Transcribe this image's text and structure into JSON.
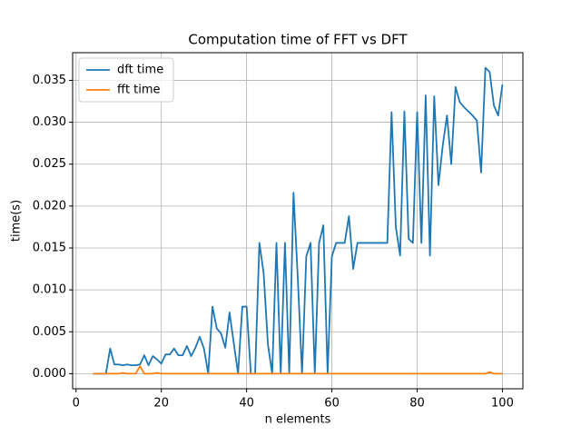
{
  "chart_data": {
    "type": "line",
    "title": "Computation time of FFT vs DFT",
    "x_label": "n elements",
    "y_label": "time(s)",
    "x": [
      4,
      5,
      6,
      7,
      8,
      9,
      10,
      11,
      12,
      13,
      14,
      15,
      16,
      17,
      18,
      19,
      20,
      21,
      22,
      23,
      24,
      25,
      26,
      27,
      28,
      29,
      30,
      31,
      32,
      33,
      34,
      35,
      36,
      37,
      38,
      39,
      40,
      41,
      42,
      43,
      44,
      45,
      46,
      47,
      48,
      49,
      50,
      51,
      52,
      53,
      54,
      55,
      56,
      57,
      58,
      59,
      60,
      61,
      62,
      63,
      64,
      65,
      66,
      67,
      68,
      69,
      70,
      71,
      72,
      73,
      74,
      75,
      76,
      77,
      78,
      79,
      80,
      81,
      82,
      83,
      84,
      85,
      86,
      87,
      88,
      89,
      90,
      91,
      92,
      93,
      94,
      95,
      96,
      97,
      98,
      99,
      100
    ],
    "series": [
      {
        "name": "dft time",
        "color": "#1f77b4",
        "values": [
          0,
          0,
          0,
          0,
          0.003,
          0.0011,
          0.0011,
          0.001,
          0.0011,
          0.001,
          0.001,
          0.0011,
          0.0022,
          0.001,
          0.0021,
          0.0017,
          0.0012,
          0.0023,
          0.0023,
          0.003,
          0.0022,
          0.0022,
          0.0033,
          0.0021,
          0.0031,
          0.0044,
          0.003,
          0,
          0.008,
          0.0054,
          0.0048,
          0.0031,
          0.0073,
          0.0036,
          0,
          0.008,
          0.008,
          0,
          0,
          0.0156,
          0.012,
          0.0035,
          0,
          0.0156,
          0,
          0.0156,
          0,
          0.0216,
          0.0115,
          0,
          0.014,
          0.0156,
          0,
          0.0156,
          0.0177,
          0,
          0.014,
          0.0156,
          0.0156,
          0.0156,
          0.0188,
          0.0125,
          0.0156,
          0.0156,
          0.0156,
          0.0156,
          0.0156,
          0.0156,
          0.0156,
          0.0156,
          0.0312,
          0.0175,
          0.0141,
          0.0313,
          0.0161,
          0.0156,
          0.0312,
          0.0156,
          0.0332,
          0.0141,
          0.0331,
          0.0225,
          0.0272,
          0.0308,
          0.025,
          0.0342,
          0.0324,
          0.0318,
          0.0313,
          0.0308,
          0.0302,
          0.024,
          0.0365,
          0.036,
          0.032,
          0.0308,
          0.0345
        ]
      },
      {
        "name": "fft time",
        "color": "#ff7f0e",
        "values": [
          0,
          0,
          0,
          0,
          0,
          0,
          0,
          0.0001,
          0,
          0,
          0,
          0.0009,
          0,
          0,
          0,
          0.0001,
          0,
          0,
          0,
          0,
          0,
          0,
          0,
          0,
          0,
          0,
          0,
          0,
          0,
          0,
          0,
          0,
          0,
          0,
          0,
          0,
          0,
          0,
          0,
          0,
          0,
          0,
          0,
          0,
          0,
          0,
          0,
          0,
          0,
          0,
          0,
          0,
          0,
          0,
          0,
          0,
          0,
          0,
          0,
          0,
          0,
          0,
          0,
          0,
          0,
          0,
          0,
          0,
          0,
          0,
          0,
          0,
          0,
          0,
          0,
          0,
          0,
          0,
          0,
          0,
          0,
          0,
          0,
          0,
          0,
          0,
          0,
          0,
          0,
          0,
          0,
          0,
          0,
          0.0002,
          0,
          0,
          0
        ]
      }
    ],
    "xlim": [
      -0.8,
      104.8
    ],
    "ylim": [
      -0.0018,
      0.0383
    ],
    "xticks": [
      0,
      20,
      40,
      60,
      80,
      100
    ],
    "yticks": [
      {
        "value": 0,
        "label": "0.000"
      },
      {
        "value": 0.005,
        "label": "0.005"
      },
      {
        "value": 0.01,
        "label": "0.010"
      },
      {
        "value": 0.015,
        "label": "0.015"
      },
      {
        "value": 0.02,
        "label": "0.020"
      },
      {
        "value": 0.025,
        "label": "0.025"
      },
      {
        "value": 0.03,
        "label": "0.030"
      },
      {
        "value": 0.035,
        "label": "0.035"
      }
    ],
    "grid": true,
    "legend": "upper left"
  }
}
